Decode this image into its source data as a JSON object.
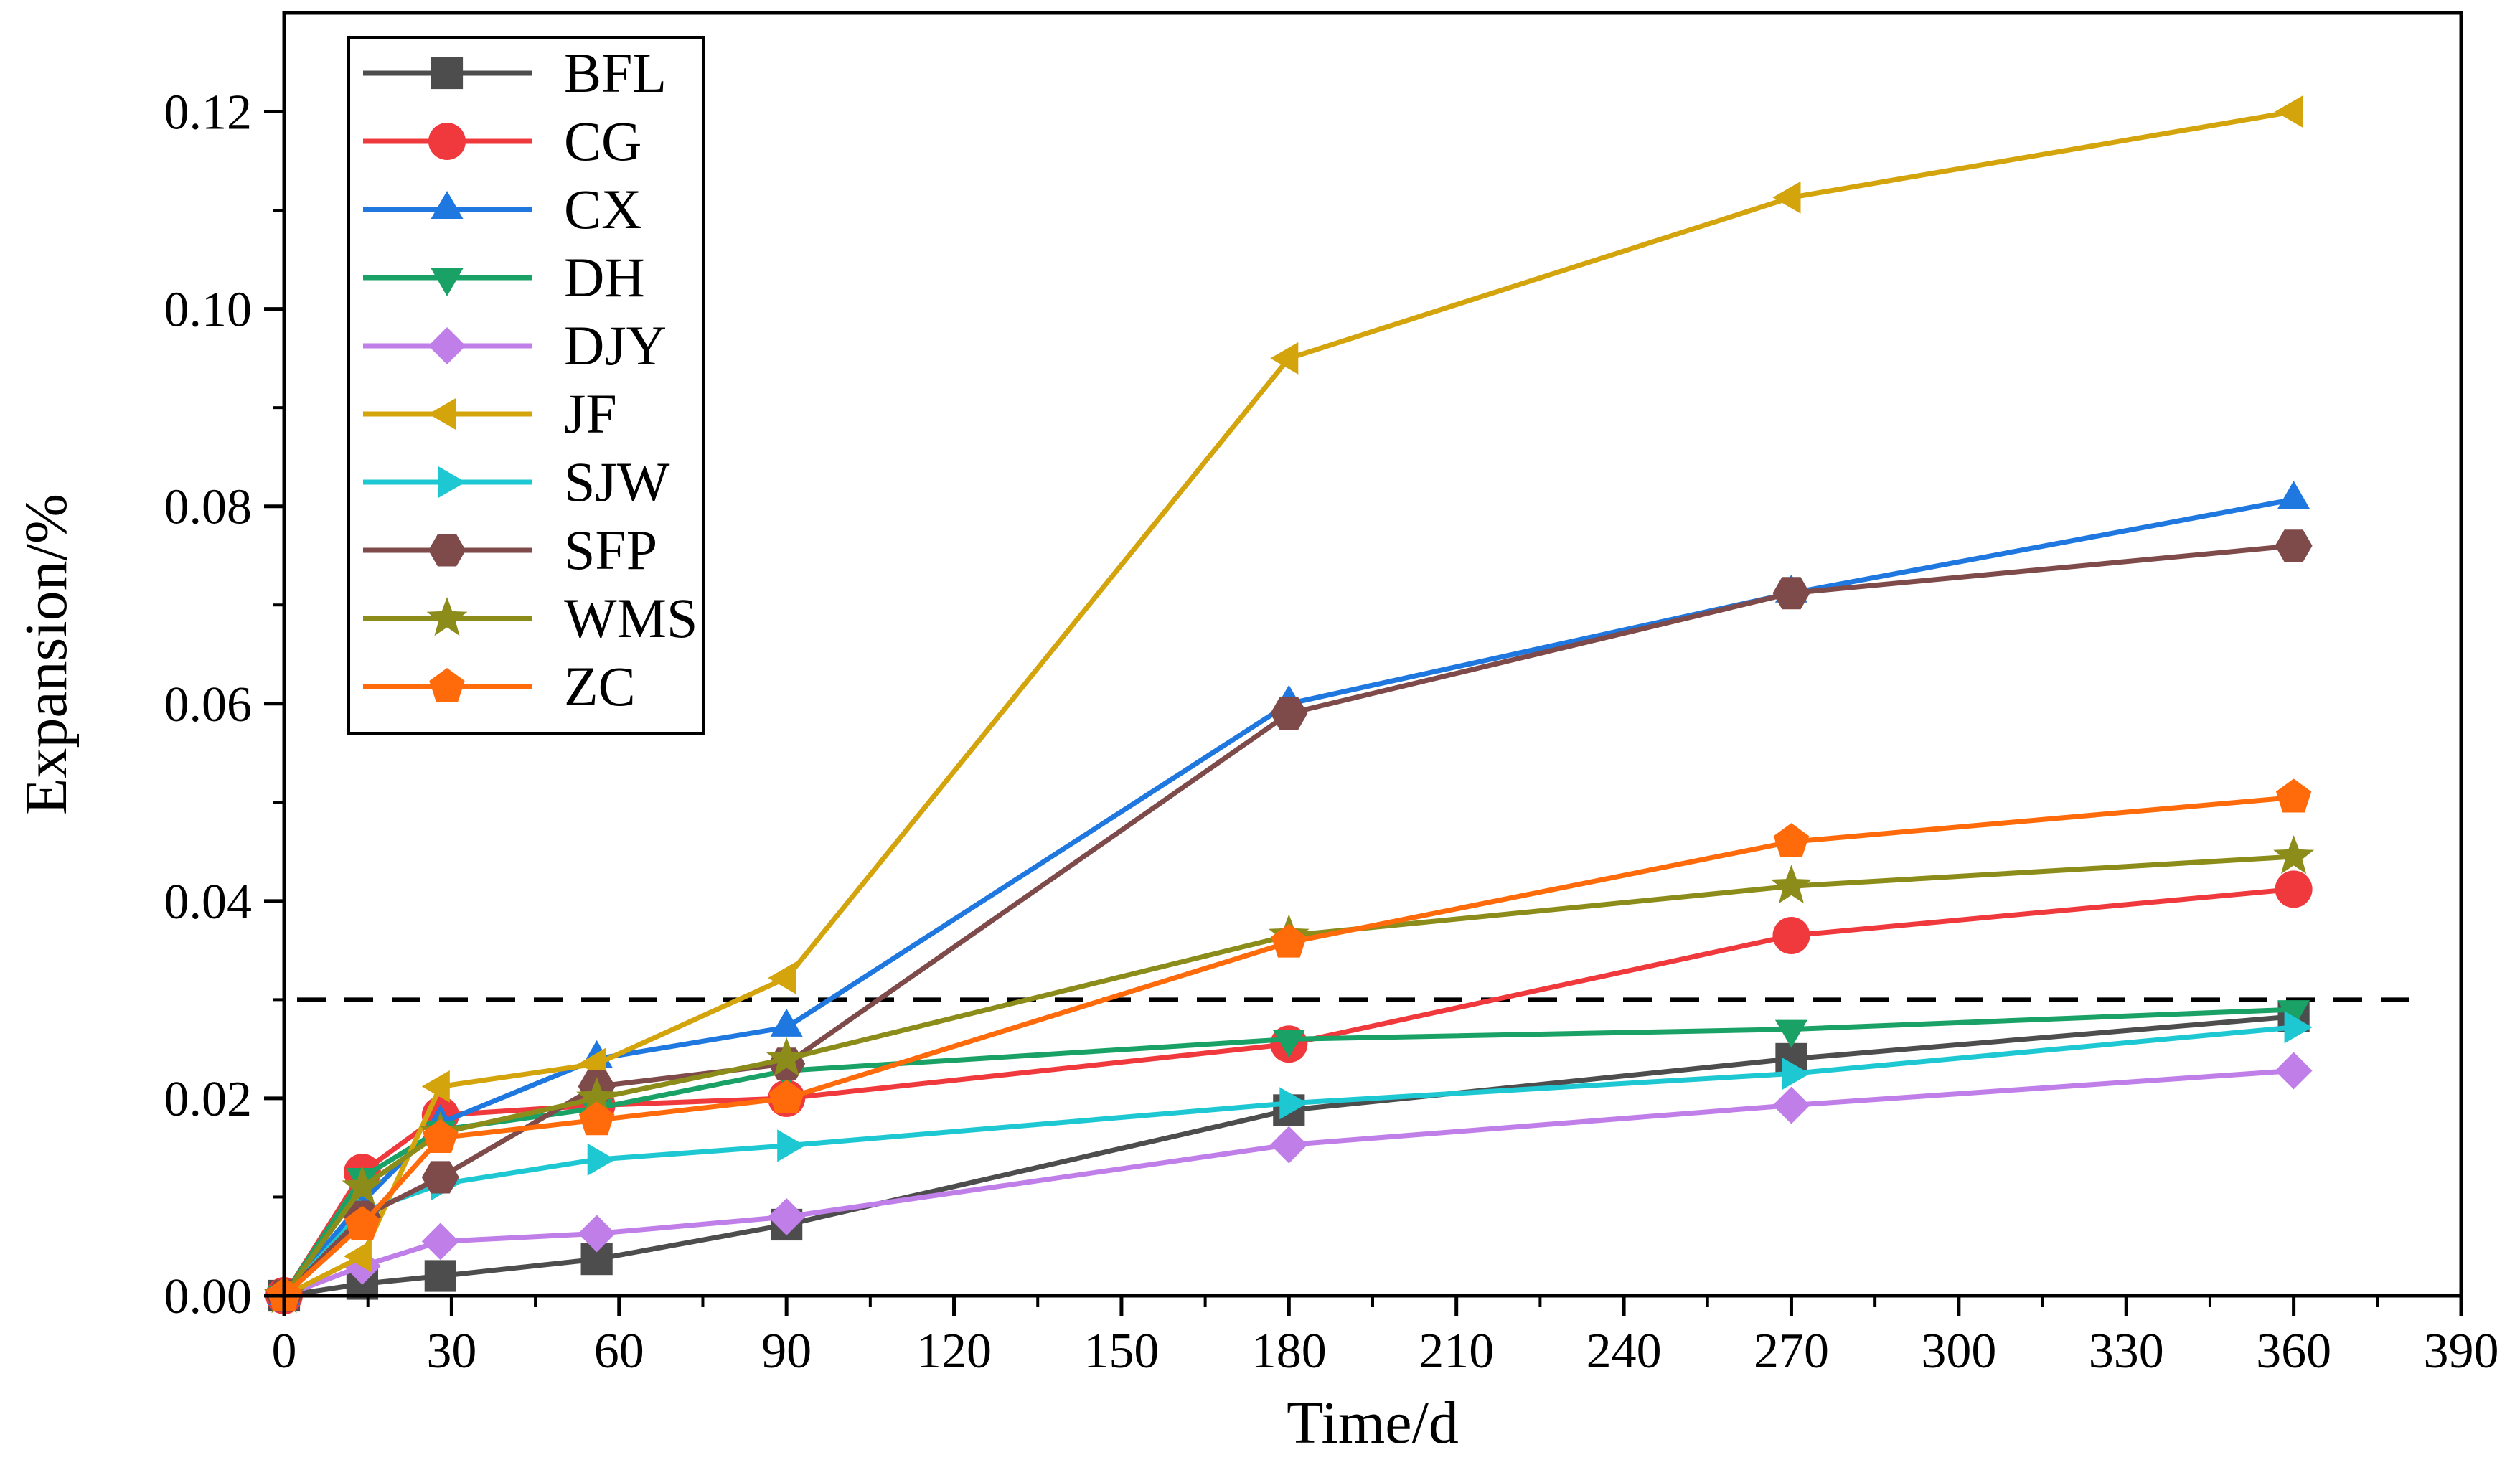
{
  "chart_data": {
    "type": "line",
    "xlabel": "Time/d",
    "ylabel": "Expansion/%",
    "xlim": [
      0,
      390
    ],
    "ylim": [
      0,
      0.13
    ],
    "xticks": [
      0,
      30,
      60,
      90,
      120,
      150,
      180,
      210,
      240,
      270,
      300,
      330,
      360,
      390
    ],
    "yticks": [
      0.0,
      0.02,
      0.04,
      0.06,
      0.08,
      0.1,
      0.12
    ],
    "ytick_labels": [
      "0.00",
      "0.02",
      "0.04",
      "0.06",
      "0.08",
      "0.10",
      "0.12"
    ],
    "grid": false,
    "legend_position": "top-left",
    "threshold": 0.03,
    "x": [
      0,
      14,
      28,
      56,
      90,
      180,
      270,
      360
    ],
    "series": [
      {
        "name": "BFL",
        "color": "#4d4d4d",
        "marker": "square",
        "values": [
          0,
          0.0012,
          0.002,
          0.0037,
          0.0072,
          0.0188,
          0.024,
          0.0283
        ]
      },
      {
        "name": "CG",
        "color": "#f0393c",
        "marker": "circle",
        "values": [
          0,
          0.0125,
          0.0183,
          0.0193,
          0.02,
          0.0255,
          0.0365,
          0.0412
        ]
      },
      {
        "name": "CX",
        "color": "#1f77e0",
        "marker": "triangle-up",
        "values": [
          0,
          0.0095,
          0.0175,
          0.024,
          0.0272,
          0.06,
          0.0712,
          0.0807
        ]
      },
      {
        "name": "DH",
        "color": "#1aa266",
        "marker": "triangle-down",
        "values": [
          0,
          0.012,
          0.0168,
          0.019,
          0.0228,
          0.026,
          0.027,
          0.029
        ]
      },
      {
        "name": "DJY",
        "color": "#c07ee8",
        "marker": "diamond",
        "values": [
          0,
          0.003,
          0.0055,
          0.0063,
          0.008,
          0.0153,
          0.0193,
          0.0228
        ]
      },
      {
        "name": "JF",
        "color": "#d4a40c",
        "marker": "triangle-left",
        "values": [
          0,
          0.004,
          0.0212,
          0.0235,
          0.0322,
          0.095,
          0.1113,
          0.12
        ]
      },
      {
        "name": "SJW",
        "color": "#1ec8d2",
        "marker": "triangle-right",
        "values": [
          0,
          0.0085,
          0.0113,
          0.0138,
          0.0152,
          0.0195,
          0.0225,
          0.0272
        ]
      },
      {
        "name": "SFP",
        "color": "#7f4a4a",
        "marker": "hexagon",
        "values": [
          0,
          0.008,
          0.012,
          0.0212,
          0.0235,
          0.059,
          0.0712,
          0.076
        ]
      },
      {
        "name": "WMS",
        "color": "#8c8c1a",
        "marker": "star",
        "values": [
          0,
          0.011,
          0.0165,
          0.02,
          0.024,
          0.0365,
          0.0415,
          0.0445
        ]
      },
      {
        "name": "ZC",
        "color": "#ff6a0a",
        "marker": "pentagon",
        "values": [
          0,
          0.0072,
          0.016,
          0.0178,
          0.02,
          0.0358,
          0.046,
          0.0505
        ]
      }
    ]
  }
}
